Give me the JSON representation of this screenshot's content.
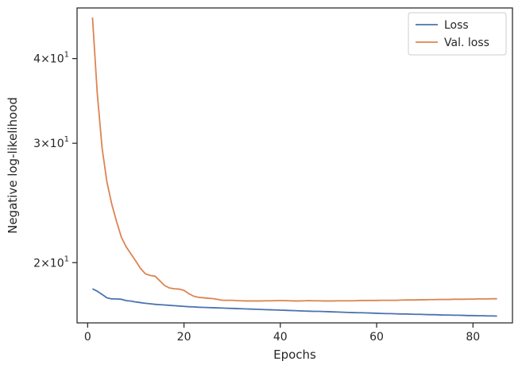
{
  "chart_data": {
    "type": "line",
    "title": "",
    "xlabel": "Epochs",
    "ylabel": "Negative log-likelihood",
    "y_scale": "log",
    "xlim": [
      -2.2,
      88.2
    ],
    "ylim": [
      16.3,
      47.5
    ],
    "x_ticks": [
      0,
      20,
      40,
      60,
      80
    ],
    "y_ticks": [
      {
        "value": 20,
        "mantissa": "2",
        "base": "10",
        "exp": "1"
      },
      {
        "value": 30,
        "mantissa": "3",
        "base": "10",
        "exp": "1"
      },
      {
        "value": 40,
        "mantissa": "4",
        "base": "10",
        "exp": "1"
      }
    ],
    "grid": false,
    "legend_position": "top-right",
    "colors": {
      "Loss": "#4c72b0",
      "Val. loss": "#dd8452"
    },
    "series": [
      {
        "name": "Loss",
        "x": [
          1,
          2,
          3,
          4,
          5,
          6,
          7,
          8,
          9,
          10,
          11,
          12,
          13,
          14,
          15,
          16,
          17,
          18,
          19,
          20,
          21,
          22,
          23,
          24,
          25,
          26,
          27,
          28,
          29,
          30,
          31,
          32,
          33,
          34,
          35,
          36,
          37,
          38,
          39,
          40,
          41,
          42,
          43,
          44,
          45,
          46,
          47,
          48,
          49,
          50,
          51,
          52,
          53,
          54,
          55,
          56,
          57,
          58,
          59,
          60,
          61,
          62,
          63,
          64,
          65,
          66,
          67,
          68,
          69,
          70,
          71,
          72,
          73,
          74,
          75,
          76,
          77,
          78,
          79,
          80,
          81,
          82,
          83,
          84,
          85
        ],
        "values": [
          18.3,
          18.15,
          17.95,
          17.75,
          17.68,
          17.68,
          17.66,
          17.58,
          17.55,
          17.5,
          17.46,
          17.42,
          17.39,
          17.36,
          17.34,
          17.32,
          17.3,
          17.28,
          17.26,
          17.24,
          17.22,
          17.21,
          17.19,
          17.18,
          17.17,
          17.16,
          17.15,
          17.14,
          17.13,
          17.12,
          17.11,
          17.1,
          17.09,
          17.08,
          17.07,
          17.06,
          17.05,
          17.04,
          17.03,
          17.02,
          17.01,
          17.0,
          16.99,
          16.98,
          16.97,
          16.96,
          16.95,
          16.95,
          16.94,
          16.93,
          16.92,
          16.91,
          16.9,
          16.89,
          16.88,
          16.87,
          16.87,
          16.86,
          16.85,
          16.84,
          16.83,
          16.82,
          16.82,
          16.81,
          16.8,
          16.8,
          16.79,
          16.78,
          16.78,
          16.77,
          16.76,
          16.76,
          16.75,
          16.74,
          16.74,
          16.73,
          16.73,
          16.72,
          16.71,
          16.71,
          16.7,
          16.7,
          16.69,
          16.69,
          16.68
        ]
      },
      {
        "name": "Val. loss",
        "x": [
          1,
          2,
          3,
          4,
          5,
          6,
          7,
          8,
          9,
          10,
          11,
          12,
          13,
          14,
          15,
          16,
          17,
          18,
          19,
          20,
          21,
          22,
          23,
          24,
          25,
          26,
          27,
          28,
          29,
          30,
          31,
          32,
          33,
          34,
          35,
          36,
          37,
          38,
          39,
          40,
          41,
          42,
          43,
          44,
          45,
          46,
          47,
          48,
          49,
          50,
          51,
          52,
          53,
          54,
          55,
          56,
          57,
          58,
          59,
          60,
          61,
          62,
          63,
          64,
          65,
          66,
          67,
          68,
          69,
          70,
          71,
          72,
          73,
          74,
          75,
          76,
          77,
          78,
          79,
          80,
          81,
          82,
          83,
          84,
          85
        ],
        "values": [
          46.0,
          35.5,
          29.5,
          26.3,
          24.4,
          23.0,
          21.8,
          21.1,
          20.6,
          20.1,
          19.6,
          19.25,
          19.15,
          19.1,
          18.8,
          18.5,
          18.35,
          18.3,
          18.28,
          18.2,
          18.0,
          17.85,
          17.78,
          17.75,
          17.72,
          17.7,
          17.65,
          17.6,
          17.6,
          17.6,
          17.58,
          17.57,
          17.56,
          17.56,
          17.56,
          17.56,
          17.57,
          17.57,
          17.58,
          17.58,
          17.58,
          17.57,
          17.56,
          17.56,
          17.57,
          17.58,
          17.57,
          17.57,
          17.56,
          17.56,
          17.56,
          17.57,
          17.57,
          17.57,
          17.57,
          17.58,
          17.59,
          17.59,
          17.59,
          17.59,
          17.6,
          17.6,
          17.6,
          17.6,
          17.61,
          17.62,
          17.62,
          17.62,
          17.63,
          17.63,
          17.64,
          17.64,
          17.65,
          17.65,
          17.65,
          17.66,
          17.66,
          17.66,
          17.67,
          17.67,
          17.68,
          17.68,
          17.68,
          17.69,
          17.69
        ]
      }
    ]
  }
}
